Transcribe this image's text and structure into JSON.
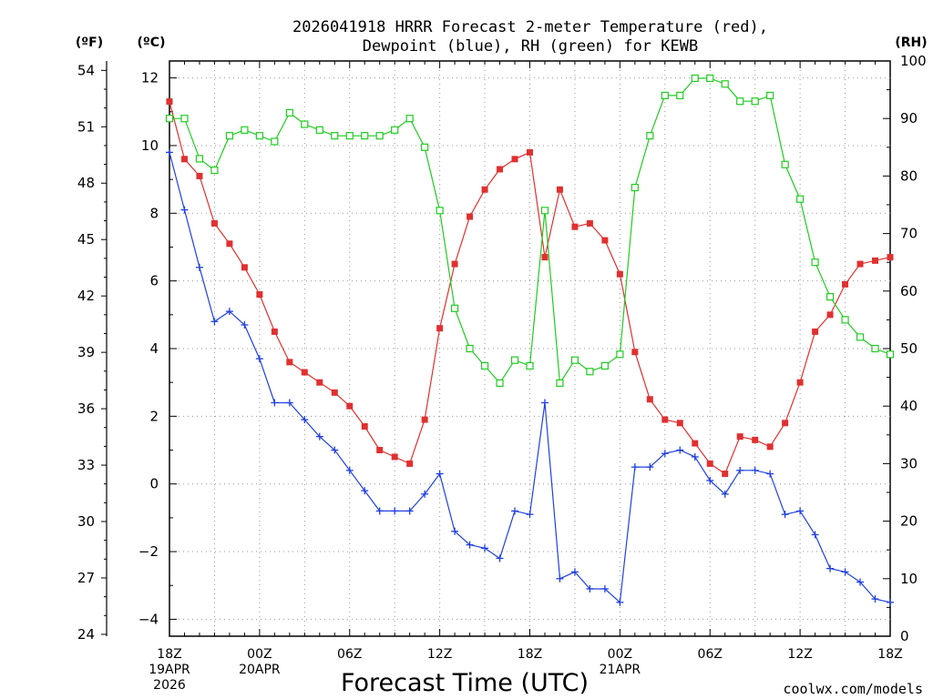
{
  "title": {
    "line1": "2026041918 HRRR Forecast 2-meter Temperature (red),",
    "line2": "Dewpoint (blue), RH (green) for KEWB"
  },
  "axes": {
    "f_unit": "(ºF)",
    "c_unit": "(ºC)",
    "rh_unit": "(RH)",
    "xlabel": "Forecast Time (UTC)"
  },
  "credit": "coolwx.com/models",
  "colors": {
    "temperature": "#e03030",
    "dewpoint": "#2040e0",
    "rh": "#20cc20",
    "grid": "#999999",
    "credit": "#e03030"
  },
  "chart_data": {
    "type": "line",
    "x_unit": "forecast hour",
    "xlim": [
      0,
      48
    ],
    "ylim_c": [
      -4.5,
      12.5
    ],
    "ylim_f": [
      23.9,
      54.5
    ],
    "ylim_rh": [
      0,
      100
    ],
    "grid": true,
    "x_ticks": [
      {
        "x": 0,
        "lines": [
          "18Z",
          "19APR",
          "2026"
        ]
      },
      {
        "x": 6,
        "lines": [
          "00Z",
          "20APR"
        ]
      },
      {
        "x": 12,
        "lines": [
          "06Z"
        ]
      },
      {
        "x": 18,
        "lines": [
          "12Z"
        ]
      },
      {
        "x": 24,
        "lines": [
          "18Z"
        ]
      },
      {
        "x": 30,
        "lines": [
          "00Z",
          "21APR"
        ]
      },
      {
        "x": 36,
        "lines": [
          "06Z"
        ]
      },
      {
        "x": 42,
        "lines": [
          "12Z"
        ]
      },
      {
        "x": 48,
        "lines": [
          "18Z"
        ]
      }
    ],
    "y_ticks_c": [
      "12",
      "10",
      "8",
      "6",
      "4",
      "2",
      "0",
      "−2",
      "−4"
    ],
    "y_tick_values_c": [
      12,
      10,
      8,
      6,
      4,
      2,
      0,
      -2,
      -4
    ],
    "y_ticks_f": [
      "54",
      "51",
      "48",
      "45",
      "42",
      "39",
      "36",
      "33",
      "30",
      "27",
      "24"
    ],
    "y_tick_values_f": [
      54,
      51,
      48,
      45,
      42,
      39,
      36,
      33,
      30,
      27,
      24
    ],
    "y_ticks_rh": [
      "100",
      "90",
      "80",
      "70",
      "60",
      "50",
      "40",
      "30",
      "20",
      "10",
      "0"
    ],
    "y_tick_values_rh": [
      100,
      90,
      80,
      70,
      60,
      50,
      40,
      30,
      20,
      10,
      0
    ],
    "series": [
      {
        "name": "Temperature",
        "marker": "square-filled",
        "color": "#e03030",
        "axis": "c",
        "values": [
          11.3,
          9.6,
          9.1,
          7.7,
          7.1,
          6.4,
          5.6,
          4.5,
          3.6,
          3.3,
          3.0,
          2.7,
          2.3,
          1.7,
          1.0,
          0.8,
          0.6,
          1.9,
          4.6,
          6.5,
          7.9,
          8.7,
          9.3,
          9.6,
          9.8,
          6.7,
          8.7,
          7.6,
          7.7,
          7.2,
          6.2,
          3.9,
          2.5,
          1.9,
          1.8,
          1.2,
          0.6,
          0.3,
          1.4,
          1.3,
          1.1,
          1.8,
          3.0,
          4.5,
          5.0,
          5.9,
          6.5,
          6.6,
          6.7
        ]
      },
      {
        "name": "Dewpoint",
        "marker": "plus",
        "color": "#2040e0",
        "axis": "c",
        "values": [
          9.8,
          8.1,
          6.4,
          4.8,
          5.1,
          4.7,
          3.7,
          2.4,
          2.4,
          1.9,
          1.4,
          1.0,
          0.4,
          -0.2,
          -0.8,
          -0.8,
          -0.8,
          -0.3,
          0.3,
          -1.4,
          -1.8,
          -1.9,
          -2.2,
          -0.8,
          -0.9,
          2.4,
          -2.8,
          -2.6,
          -3.1,
          -3.1,
          -3.5,
          0.5,
          0.5,
          0.9,
          1.0,
          0.8,
          0.1,
          -0.3,
          0.4,
          0.4,
          0.3,
          -0.9,
          -0.8,
          -1.5,
          -2.5,
          -2.6,
          -2.9,
          -3.4,
          -3.5
        ]
      },
      {
        "name": "RH",
        "marker": "square-open",
        "color": "#20cc20",
        "axis": "rh",
        "values": [
          90,
          90,
          83,
          81,
          87,
          88,
          87,
          86,
          91,
          89,
          88,
          87,
          87,
          87,
          87,
          88,
          90,
          85,
          74,
          57,
          50,
          47,
          44,
          48,
          47,
          74,
          44,
          48,
          46,
          47,
          49,
          78,
          87,
          94,
          94,
          97,
          97,
          96,
          93,
          93,
          94,
          82,
          76,
          65,
          59,
          55,
          52,
          50,
          49
        ]
      }
    ]
  }
}
